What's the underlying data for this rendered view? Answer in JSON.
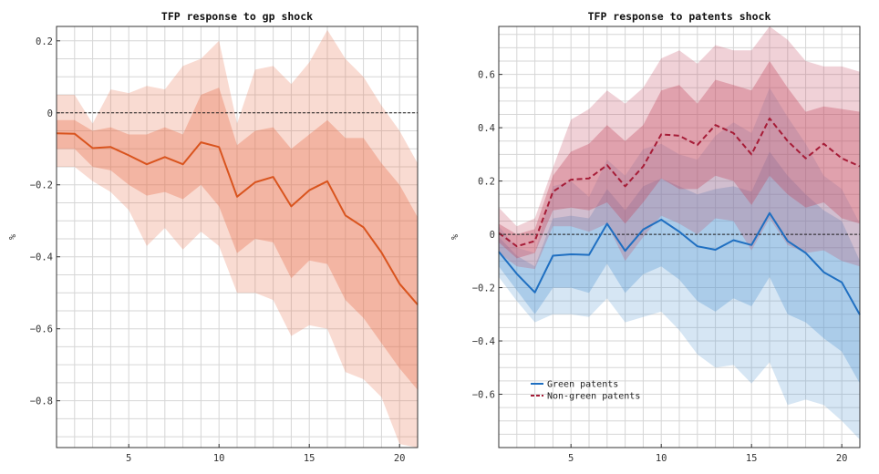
{
  "chart_data": [
    {
      "type": "line",
      "title": "TFP response to gp shock",
      "ylabel": "%",
      "xlabel": "",
      "xlim": [
        1,
        21
      ],
      "ylim": [
        -0.93,
        0.24
      ],
      "x_ticks": [
        5,
        10,
        15,
        20
      ],
      "y_ticks": [
        0.2,
        0,
        -0.2,
        -0.4,
        -0.6,
        -0.8
      ],
      "y_tick_labels": [
        "0.2",
        "0",
        "−0.2",
        "−0.4",
        "−0.6",
        "−0.8"
      ],
      "grid": true,
      "zero_line": true,
      "x": [
        1,
        2,
        3,
        4,
        5,
        6,
        7,
        8,
        9,
        10,
        11,
        12,
        13,
        14,
        15,
        16,
        17,
        18,
        19,
        20,
        21
      ],
      "series": [
        {
          "color": "#d9541e",
          "style": "solid",
          "band_color": "#e8714a",
          "values": [
            -0.057,
            -0.058,
            -0.098,
            -0.095,
            -0.118,
            -0.143,
            -0.123,
            -0.143,
            -0.082,
            -0.095,
            -0.233,
            -0.193,
            -0.178,
            -0.26,
            -0.215,
            -0.19,
            -0.285,
            -0.318,
            -0.388,
            -0.475,
            -0.533
          ],
          "bands": [
            {
              "level": "inner",
              "upper": [
                -0.02,
                -0.02,
                -0.05,
                -0.04,
                -0.06,
                -0.06,
                -0.04,
                -0.06,
                0.05,
                0.07,
                -0.09,
                -0.05,
                -0.04,
                -0.1,
                -0.06,
                -0.02,
                -0.07,
                -0.07,
                -0.14,
                -0.2,
                -0.29
              ],
              "lower": [
                -0.1,
                -0.1,
                -0.15,
                -0.16,
                -0.2,
                -0.23,
                -0.22,
                -0.24,
                -0.2,
                -0.26,
                -0.39,
                -0.35,
                -0.36,
                -0.46,
                -0.41,
                -0.42,
                -0.52,
                -0.57,
                -0.64,
                -0.71,
                -0.77
              ]
            },
            {
              "level": "outer",
              "upper": [
                0.05,
                0.05,
                -0.03,
                0.065,
                0.055,
                0.075,
                0.065,
                0.13,
                0.15,
                0.2,
                -0.03,
                0.12,
                0.13,
                0.08,
                0.14,
                0.23,
                0.15,
                0.1,
                0.02,
                -0.05,
                -0.14
              ],
              "lower": [
                -0.15,
                -0.15,
                -0.19,
                -0.22,
                -0.27,
                -0.37,
                -0.32,
                -0.38,
                -0.33,
                -0.37,
                -0.5,
                -0.5,
                -0.52,
                -0.62,
                -0.59,
                -0.6,
                -0.72,
                -0.74,
                -0.79,
                -0.92,
                -0.93
              ]
            }
          ]
        }
      ]
    },
    {
      "type": "line",
      "title": "TFP response to patents shock",
      "ylabel": "%",
      "xlabel": "",
      "xlim": [
        1,
        21
      ],
      "ylim": [
        -0.8,
        0.78
      ],
      "x_ticks": [
        5,
        10,
        15,
        20
      ],
      "y_ticks": [
        0.6,
        0.4,
        0.2,
        0,
        -0.2,
        -0.4,
        -0.6
      ],
      "y_tick_labels": [
        "0.6",
        "0.4",
        "0.2",
        "0",
        "−0.2",
        "−0.4",
        "−0.6"
      ],
      "grid": true,
      "zero_line": true,
      "legend_position": "bottom-left",
      "x": [
        1,
        2,
        3,
        4,
        5,
        6,
        7,
        8,
        9,
        10,
        11,
        12,
        13,
        14,
        15,
        16,
        17,
        18,
        19,
        20,
        21
      ],
      "series": [
        {
          "name": "Green patents",
          "color": "#1f6fc1",
          "style": "solid",
          "band_color": "#5b9bd5",
          "values": [
            -0.065,
            -0.148,
            -0.218,
            -0.08,
            -0.075,
            -0.077,
            0.04,
            -0.062,
            0.018,
            0.055,
            0.01,
            -0.045,
            -0.058,
            -0.022,
            -0.04,
            0.08,
            -0.025,
            -0.07,
            -0.142,
            -0.18,
            -0.302
          ],
          "bands": [
            {
              "level": "inner",
              "upper": [
                -0.01,
                -0.08,
                -0.12,
                0.06,
                0.07,
                0.06,
                0.17,
                0.09,
                0.18,
                0.21,
                0.18,
                0.15,
                0.17,
                0.18,
                0.16,
                0.31,
                0.22,
                0.15,
                0.09,
                0.05,
                -0.1
              ],
              "lower": [
                -0.12,
                -0.21,
                -0.3,
                -0.2,
                -0.2,
                -0.22,
                -0.11,
                -0.22,
                -0.15,
                -0.12,
                -0.17,
                -0.25,
                -0.29,
                -0.24,
                -0.27,
                -0.16,
                -0.3,
                -0.33,
                -0.39,
                -0.44,
                -0.56
              ]
            },
            {
              "level": "outer",
              "upper": [
                0.03,
                -0.05,
                -0.07,
                0.18,
                0.2,
                0.14,
                0.28,
                0.22,
                0.32,
                0.34,
                0.3,
                0.28,
                0.37,
                0.42,
                0.38,
                0.55,
                0.44,
                0.34,
                0.22,
                0.17,
                0.04
              ],
              "lower": [
                -0.16,
                -0.25,
                -0.33,
                -0.3,
                -0.3,
                -0.31,
                -0.24,
                -0.33,
                -0.31,
                -0.29,
                -0.36,
                -0.45,
                -0.5,
                -0.49,
                -0.56,
                -0.48,
                -0.64,
                -0.62,
                -0.64,
                -0.7,
                -0.77
              ]
            }
          ]
        },
        {
          "name": "Non-green patents",
          "color": "#a61c37",
          "style": "dashed",
          "band_color": "#c2485f",
          "values": [
            0.005,
            -0.045,
            -0.025,
            0.16,
            0.205,
            0.21,
            0.26,
            0.18,
            0.255,
            0.375,
            0.37,
            0.335,
            0.41,
            0.38,
            0.3,
            0.435,
            0.35,
            0.285,
            0.34,
            0.285,
            0.255
          ],
          "bands": [
            {
              "level": "inner",
              "upper": [
                0.04,
                0.0,
                0.02,
                0.22,
                0.31,
                0.34,
                0.41,
                0.35,
                0.41,
                0.54,
                0.56,
                0.49,
                0.58,
                0.56,
                0.54,
                0.65,
                0.55,
                0.46,
                0.48,
                0.47,
                0.46
              ],
              "lower": [
                -0.03,
                -0.09,
                -0.07,
                0.09,
                0.1,
                0.09,
                0.12,
                0.04,
                0.12,
                0.21,
                0.17,
                0.17,
                0.22,
                0.2,
                0.11,
                0.22,
                0.15,
                0.1,
                0.12,
                0.06,
                0.04
              ]
            },
            {
              "level": "outer",
              "upper": [
                0.1,
                0.03,
                0.06,
                0.25,
                0.43,
                0.47,
                0.54,
                0.49,
                0.55,
                0.66,
                0.69,
                0.64,
                0.71,
                0.69,
                0.69,
                0.78,
                0.73,
                0.65,
                0.63,
                0.63,
                0.61
              ],
              "lower": [
                -0.07,
                -0.12,
                -0.13,
                0.03,
                0.03,
                0.01,
                0.04,
                -0.1,
                -0.01,
                0.07,
                0.04,
                0.0,
                0.06,
                0.05,
                -0.06,
                0.06,
                -0.04,
                -0.07,
                -0.06,
                -0.1,
                -0.12
              ]
            }
          ]
        }
      ]
    }
  ]
}
